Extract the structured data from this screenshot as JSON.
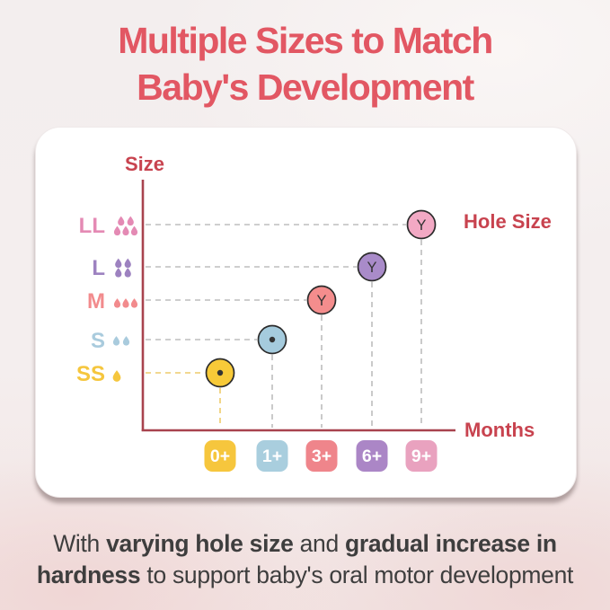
{
  "title": {
    "line1": "Multiple Sizes to Match",
    "line2": "Baby's Development"
  },
  "colors": {
    "title": "#e25763",
    "axis": "#a8434e",
    "axis_label": "#c8434f",
    "marker_outline": "#2b2b2b",
    "marker_symbol_color": "#333333",
    "badge_text": "#ffffff",
    "footer_text": "#3e3e3e",
    "card_bg": "#ffffff"
  },
  "chart_data": {
    "type": "scatter",
    "title": "",
    "xlabel": "Months",
    "ylabel": "Size",
    "right_label": "Hole Size",
    "x_categories": [
      "0+",
      "1+",
      "3+",
      "6+",
      "9+"
    ],
    "y_categories": [
      "SS",
      "S",
      "M",
      "L",
      "LL"
    ],
    "grid": "dashed guides from each point to both axes",
    "points": [
      {
        "size": "SS",
        "months": "0+",
        "hole": "round",
        "marker_label": "",
        "drops": 1,
        "accent": "#f5c63e",
        "marker_fill": "#f8ca38",
        "badge_fill": "#f6c63d",
        "dash": "#eecb6b"
      },
      {
        "size": "S",
        "months": "1+",
        "hole": "round",
        "marker_label": "",
        "drops": 2,
        "accent": "#a9cbdd",
        "marker_fill": "#a5cbdd",
        "badge_fill": "#a9cede",
        "dash": "#bdbdbd"
      },
      {
        "size": "M",
        "months": "3+",
        "hole": "Y-cut",
        "marker_label": "Y",
        "drops": 3,
        "accent": "#f28b8d",
        "marker_fill": "#f48d8d",
        "badge_fill": "#ef858b",
        "dash": "#bdbdbd"
      },
      {
        "size": "L",
        "months": "6+",
        "hole": "Y-cut",
        "marker_label": "Y",
        "drops": 4,
        "accent": "#9d82c0",
        "marker_fill": "#a98bc9",
        "badge_fill": "#ab86c6",
        "dash": "#bdbdbd"
      },
      {
        "size": "LL",
        "months": "9+",
        "hole": "Y-cut",
        "marker_label": "Y",
        "drops": 5,
        "accent": "#e48ab4",
        "marker_fill": "#f2a9c4",
        "badge_fill": "#e9a2bf",
        "dash": "#bdbdbd"
      }
    ]
  },
  "footer": {
    "segments": [
      {
        "text": "With ",
        "bold": false
      },
      {
        "text": "varying hole size",
        "bold": true
      },
      {
        "text": " and ",
        "bold": false
      },
      {
        "text": "gradual increase in hardness",
        "bold": true
      },
      {
        "text": " to support baby's oral motor development",
        "bold": false
      }
    ]
  }
}
